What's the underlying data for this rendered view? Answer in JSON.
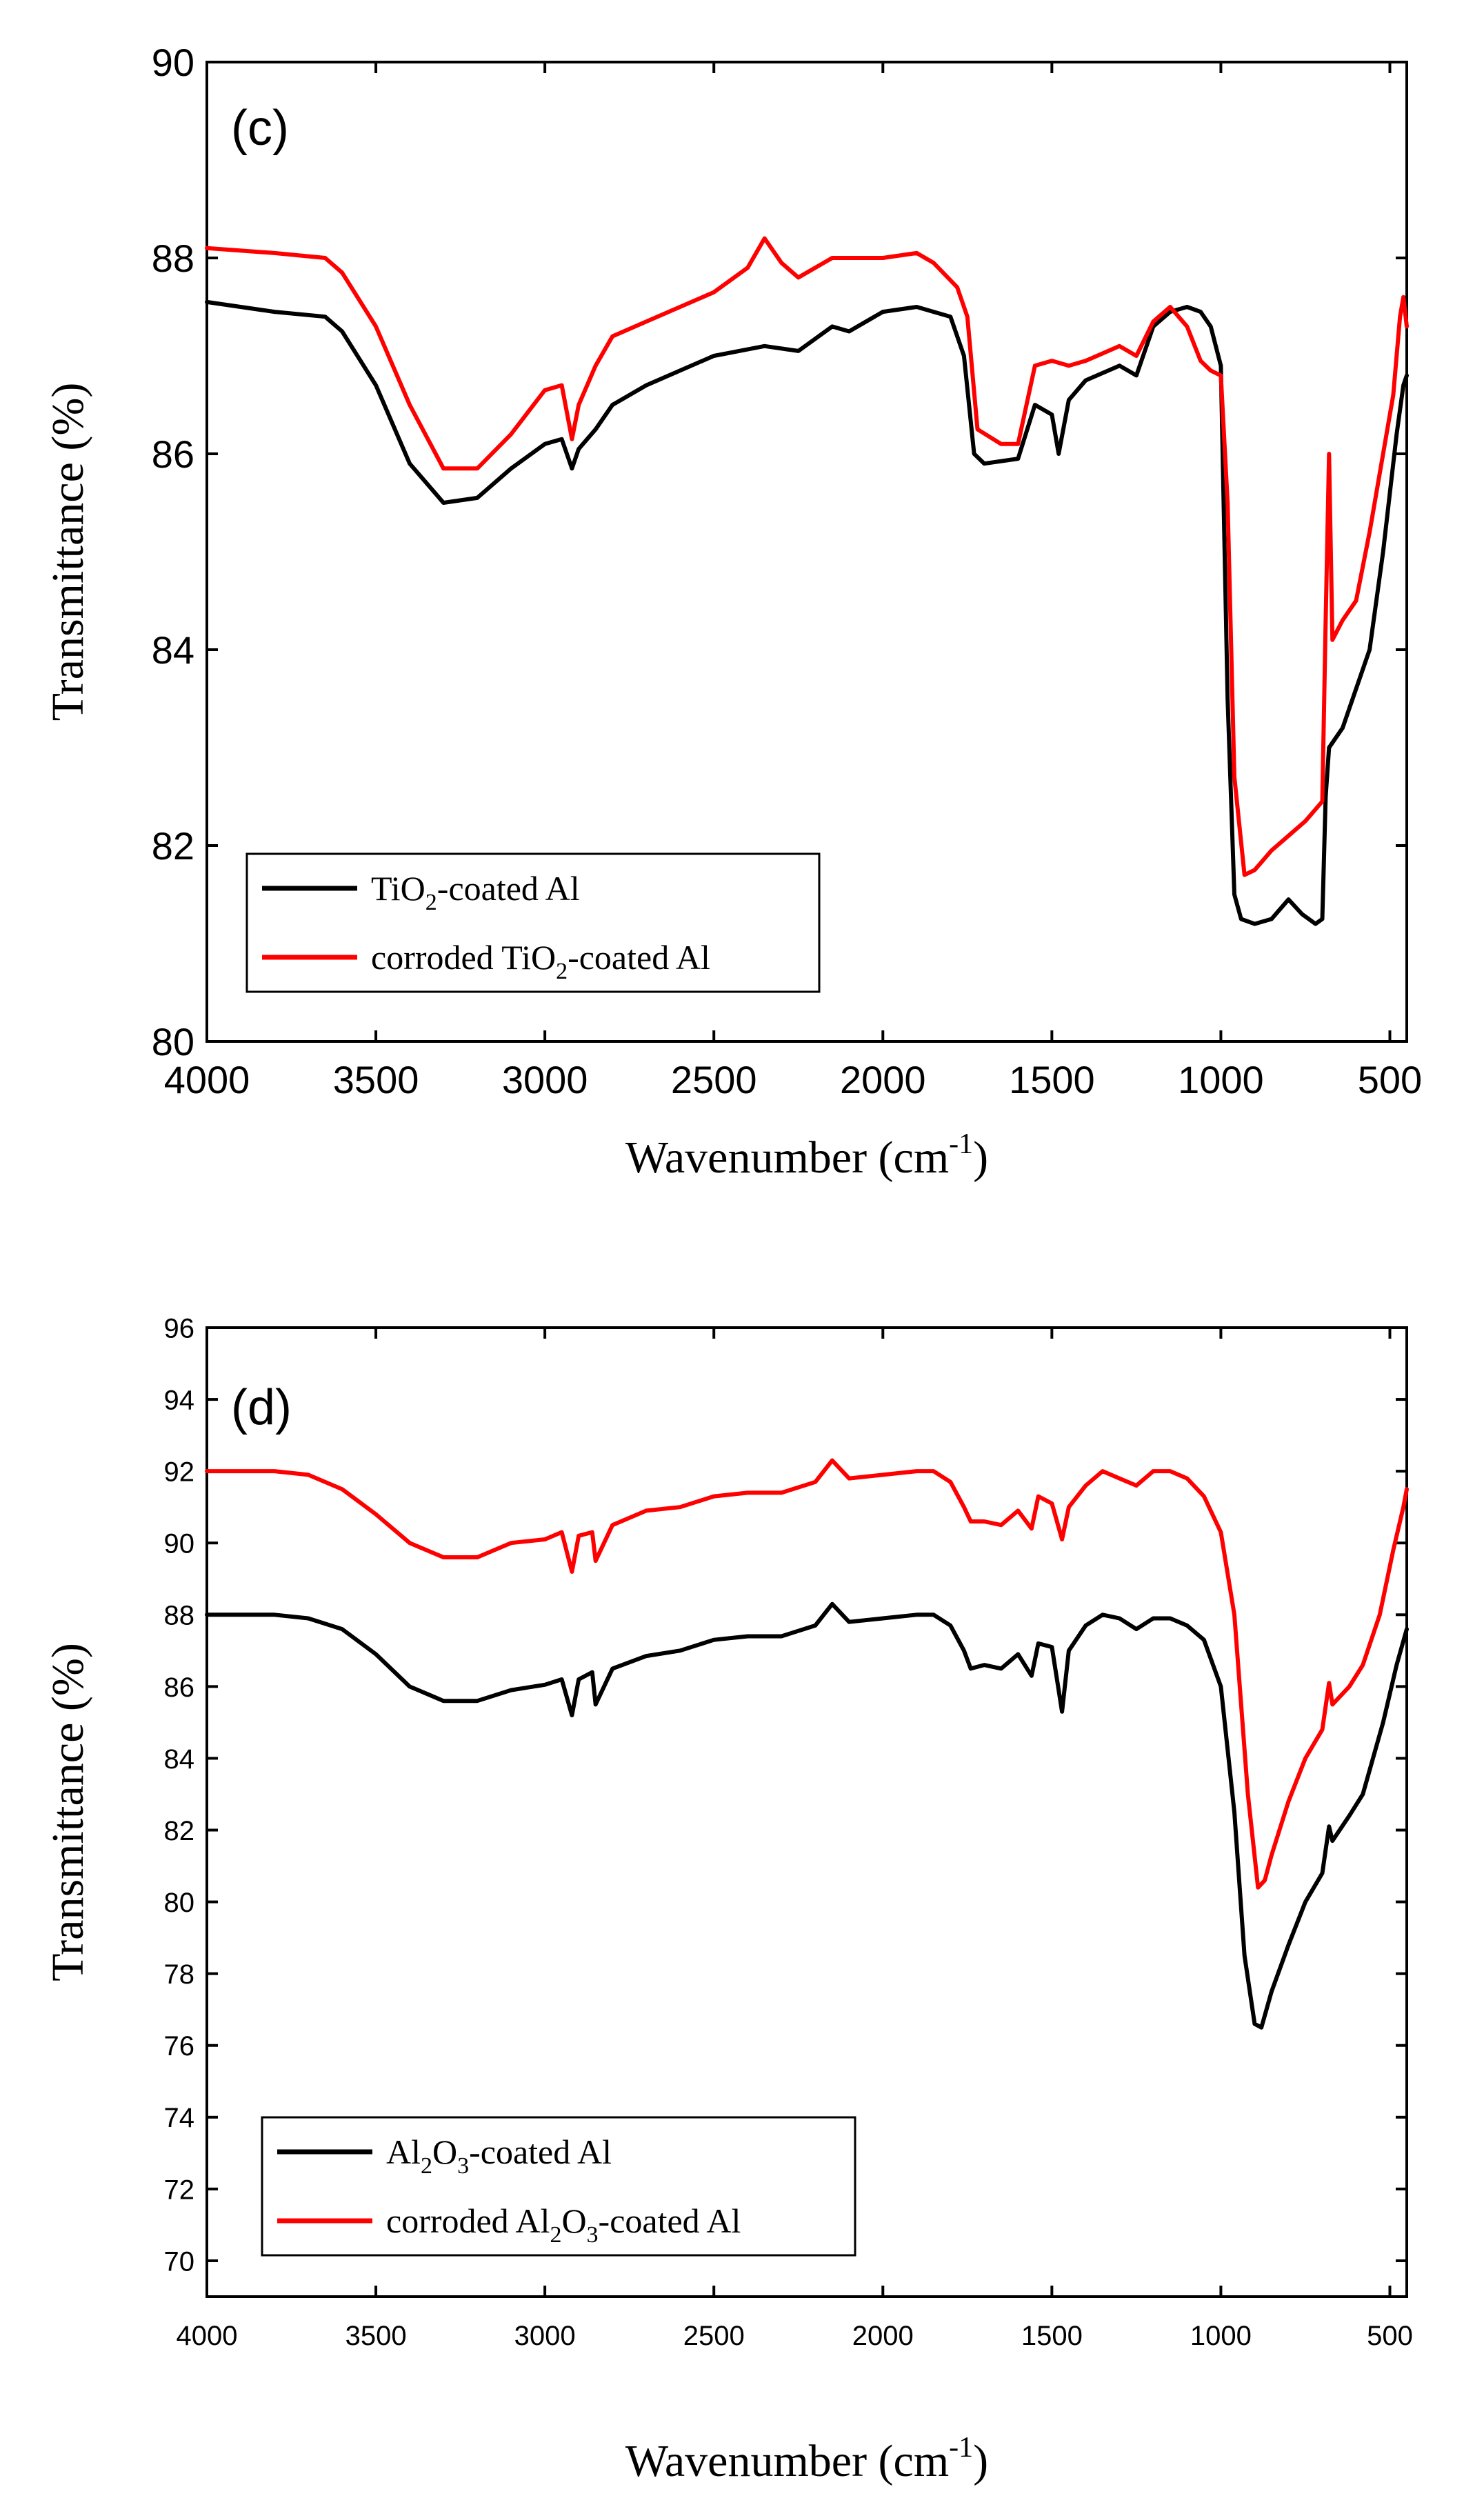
{
  "chart_data": [
    {
      "type": "line",
      "panel_label": "(c)",
      "xlabel": "Wavenumber (cm",
      "xlabel_sup": "-1",
      "xlabel_end": ")",
      "ylabel": "Transmittance (%)",
      "xlim": [
        4000,
        450
      ],
      "ylim": [
        80,
        90
      ],
      "xticks": [
        4000,
        3500,
        3000,
        2500,
        2000,
        1500,
        1000,
        500
      ],
      "yticks": [
        80,
        82,
        84,
        86,
        88,
        90
      ],
      "legend_position": "bottom-left",
      "series": [
        {
          "name": "TiO2-coated Al",
          "legend_parts": [
            "TiO",
            "2",
            "-coated Al"
          ],
          "color": "#000000",
          "points": [
            [
              4000,
              87.55
            ],
            [
              3800,
              87.45
            ],
            [
              3650,
              87.4
            ],
            [
              3600,
              87.25
            ],
            [
              3500,
              86.7
            ],
            [
              3400,
              85.9
            ],
            [
              3300,
              85.5
            ],
            [
              3200,
              85.55
            ],
            [
              3100,
              85.85
            ],
            [
              3000,
              86.1
            ],
            [
              2950,
              86.15
            ],
            [
              2920,
              85.85
            ],
            [
              2900,
              86.05
            ],
            [
              2850,
              86.25
            ],
            [
              2800,
              86.5
            ],
            [
              2700,
              86.7
            ],
            [
              2500,
              87.0
            ],
            [
              2350,
              87.1
            ],
            [
              2250,
              87.05
            ],
            [
              2150,
              87.3
            ],
            [
              2100,
              87.25
            ],
            [
              2000,
              87.45
            ],
            [
              1900,
              87.5
            ],
            [
              1800,
              87.4
            ],
            [
              1760,
              87.0
            ],
            [
              1730,
              86.0
            ],
            [
              1700,
              85.9
            ],
            [
              1600,
              85.95
            ],
            [
              1550,
              86.5
            ],
            [
              1500,
              86.4
            ],
            [
              1480,
              86.0
            ],
            [
              1450,
              86.55
            ],
            [
              1400,
              86.75
            ],
            [
              1300,
              86.9
            ],
            [
              1250,
              86.8
            ],
            [
              1200,
              87.3
            ],
            [
              1150,
              87.45
            ],
            [
              1100,
              87.5
            ],
            [
              1060,
              87.45
            ],
            [
              1030,
              87.3
            ],
            [
              1000,
              86.9
            ],
            [
              980,
              83.5
            ],
            [
              960,
              81.5
            ],
            [
              940,
              81.25
            ],
            [
              900,
              81.2
            ],
            [
              850,
              81.25
            ],
            [
              800,
              81.45
            ],
            [
              760,
              81.3
            ],
            [
              720,
              81.2
            ],
            [
              700,
              81.25
            ],
            [
              690,
              82.5
            ],
            [
              680,
              83.0
            ],
            [
              640,
              83.2
            ],
            [
              620,
              83.4
            ],
            [
              560,
              84.0
            ],
            [
              520,
              85.0
            ],
            [
              480,
              86.2
            ],
            [
              460,
              86.7
            ],
            [
              450,
              86.8
            ]
          ]
        },
        {
          "name": "corroded TiO2-coated Al",
          "legend_parts": [
            "corroded TiO",
            "2",
            "-coated Al"
          ],
          "color": "#ff0000",
          "points": [
            [
              4000,
              88.1
            ],
            [
              3800,
              88.05
            ],
            [
              3650,
              88.0
            ],
            [
              3600,
              87.85
            ],
            [
              3500,
              87.3
            ],
            [
              3400,
              86.5
            ],
            [
              3300,
              85.85
            ],
            [
              3200,
              85.85
            ],
            [
              3100,
              86.2
            ],
            [
              3000,
              86.65
            ],
            [
              2950,
              86.7
            ],
            [
              2920,
              86.15
            ],
            [
              2900,
              86.5
            ],
            [
              2850,
              86.9
            ],
            [
              2800,
              87.2
            ],
            [
              2700,
              87.35
            ],
            [
              2500,
              87.65
            ],
            [
              2400,
              87.9
            ],
            [
              2350,
              88.2
            ],
            [
              2300,
              87.95
            ],
            [
              2250,
              87.8
            ],
            [
              2150,
              88.0
            ],
            [
              2000,
              88.0
            ],
            [
              1900,
              88.05
            ],
            [
              1850,
              87.95
            ],
            [
              1780,
              87.7
            ],
            [
              1750,
              87.4
            ],
            [
              1720,
              86.25
            ],
            [
              1650,
              86.1
            ],
            [
              1600,
              86.1
            ],
            [
              1550,
              86.9
            ],
            [
              1500,
              86.95
            ],
            [
              1450,
              86.9
            ],
            [
              1400,
              86.95
            ],
            [
              1300,
              87.1
            ],
            [
              1250,
              87.0
            ],
            [
              1200,
              87.35
            ],
            [
              1150,
              87.5
            ],
            [
              1100,
              87.3
            ],
            [
              1060,
              86.95
            ],
            [
              1030,
              86.85
            ],
            [
              1000,
              86.8
            ],
            [
              980,
              85.5
            ],
            [
              960,
              82.7
            ],
            [
              930,
              81.7
            ],
            [
              900,
              81.75
            ],
            [
              850,
              81.95
            ],
            [
              800,
              82.1
            ],
            [
              750,
              82.25
            ],
            [
              700,
              82.45
            ],
            [
              690,
              84.3
            ],
            [
              680,
              86.0
            ],
            [
              670,
              84.1
            ],
            [
              640,
              84.3
            ],
            [
              600,
              84.5
            ],
            [
              560,
              85.2
            ],
            [
              520,
              86.0
            ],
            [
              490,
              86.6
            ],
            [
              470,
              87.4
            ],
            [
              460,
              87.6
            ],
            [
              450,
              87.3
            ]
          ]
        }
      ]
    },
    {
      "type": "line",
      "panel_label": "(d)",
      "xlabel": "Wavenumber (cm",
      "xlabel_sup": "-1",
      "xlabel_end": ")",
      "ylabel": "Transmittance (%)",
      "xlim": [
        4000,
        450
      ],
      "ylim": [
        69,
        96
      ],
      "xticks": [
        4000,
        3500,
        3000,
        2500,
        2000,
        1500,
        1000,
        500
      ],
      "yticks": [
        70,
        72,
        74,
        76,
        78,
        80,
        82,
        84,
        86,
        88,
        90,
        92,
        94,
        96
      ],
      "legend_position": "bottom-left",
      "series": [
        {
          "name": "Al2O3-coated Al",
          "legend_parts": [
            "Al",
            "2",
            "O",
            "3",
            "-coated Al"
          ],
          "color": "#000000",
          "points": [
            [
              4000,
              88.0
            ],
            [
              3800,
              88.0
            ],
            [
              3700,
              87.9
            ],
            [
              3600,
              87.6
            ],
            [
              3500,
              86.9
            ],
            [
              3400,
              86.0
            ],
            [
              3300,
              85.6
            ],
            [
              3200,
              85.6
            ],
            [
              3100,
              85.9
            ],
            [
              3000,
              86.05
            ],
            [
              2950,
              86.2
            ],
            [
              2920,
              85.2
            ],
            [
              2900,
              86.2
            ],
            [
              2860,
              86.4
            ],
            [
              2850,
              85.5
            ],
            [
              2800,
              86.5
            ],
            [
              2700,
              86.85
            ],
            [
              2600,
              87.0
            ],
            [
              2500,
              87.3
            ],
            [
              2400,
              87.4
            ],
            [
              2300,
              87.4
            ],
            [
              2200,
              87.7
            ],
            [
              2150,
              88.3
            ],
            [
              2100,
              87.8
            ],
            [
              2000,
              87.9
            ],
            [
              1900,
              88.0
            ],
            [
              1850,
              88.0
            ],
            [
              1800,
              87.7
            ],
            [
              1760,
              87.0
            ],
            [
              1740,
              86.5
            ],
            [
              1700,
              86.6
            ],
            [
              1650,
              86.5
            ],
            [
              1600,
              86.9
            ],
            [
              1560,
              86.3
            ],
            [
              1540,
              87.2
            ],
            [
              1500,
              87.1
            ],
            [
              1470,
              85.3
            ],
            [
              1450,
              87.0
            ],
            [
              1400,
              87.7
            ],
            [
              1350,
              88.0
            ],
            [
              1300,
              87.9
            ],
            [
              1250,
              87.6
            ],
            [
              1200,
              87.9
            ],
            [
              1150,
              87.9
            ],
            [
              1100,
              87.7
            ],
            [
              1050,
              87.3
            ],
            [
              1000,
              86.0
            ],
            [
              960,
              82.5
            ],
            [
              930,
              78.5
            ],
            [
              900,
              76.6
            ],
            [
              880,
              76.5
            ],
            [
              850,
              77.5
            ],
            [
              800,
              78.8
            ],
            [
              750,
              80.0
            ],
            [
              700,
              80.8
            ],
            [
              680,
              82.1
            ],
            [
              670,
              81.7
            ],
            [
              620,
              82.4
            ],
            [
              580,
              83.0
            ],
            [
              520,
              85.0
            ],
            [
              480,
              86.6
            ],
            [
              450,
              87.6
            ]
          ]
        },
        {
          "name": "corroded Al2O3-coated Al",
          "legend_parts": [
            "corroded Al",
            "2",
            "O",
            "3",
            "-coated Al"
          ],
          "color": "#ff0000",
          "points": [
            [
              4000,
              92.0
            ],
            [
              3800,
              92.0
            ],
            [
              3700,
              91.9
            ],
            [
              3600,
              91.5
            ],
            [
              3500,
              90.8
            ],
            [
              3400,
              90.0
            ],
            [
              3300,
              89.6
            ],
            [
              3200,
              89.6
            ],
            [
              3100,
              90.0
            ],
            [
              3000,
              90.1
            ],
            [
              2950,
              90.3
            ],
            [
              2920,
              89.2
            ],
            [
              2900,
              90.2
            ],
            [
              2860,
              90.3
            ],
            [
              2850,
              89.5
            ],
            [
              2800,
              90.5
            ],
            [
              2700,
              90.9
            ],
            [
              2600,
              91.0
            ],
            [
              2500,
              91.3
            ],
            [
              2400,
              91.4
            ],
            [
              2300,
              91.4
            ],
            [
              2200,
              91.7
            ],
            [
              2150,
              92.3
            ],
            [
              2100,
              91.8
            ],
            [
              2000,
              91.9
            ],
            [
              1900,
              92.0
            ],
            [
              1850,
              92.0
            ],
            [
              1800,
              91.7
            ],
            [
              1760,
              91.0
            ],
            [
              1740,
              90.6
            ],
            [
              1700,
              90.6
            ],
            [
              1650,
              90.5
            ],
            [
              1600,
              90.9
            ],
            [
              1560,
              90.4
            ],
            [
              1540,
              91.3
            ],
            [
              1500,
              91.1
            ],
            [
              1470,
              90.1
            ],
            [
              1450,
              91.0
            ],
            [
              1400,
              91.6
            ],
            [
              1350,
              92.0
            ],
            [
              1300,
              91.8
            ],
            [
              1250,
              91.6
            ],
            [
              1200,
              92.0
            ],
            [
              1150,
              92.0
            ],
            [
              1100,
              91.8
            ],
            [
              1050,
              91.3
            ],
            [
              1000,
              90.3
            ],
            [
              960,
              88.0
            ],
            [
              920,
              83.0
            ],
            [
              890,
              80.4
            ],
            [
              870,
              80.6
            ],
            [
              850,
              81.3
            ],
            [
              800,
              82.8
            ],
            [
              750,
              84.0
            ],
            [
              700,
              84.8
            ],
            [
              680,
              86.1
            ],
            [
              670,
              85.5
            ],
            [
              620,
              86.0
            ],
            [
              580,
              86.6
            ],
            [
              530,
              88.0
            ],
            [
              490,
              89.8
            ],
            [
              460,
              91.0
            ],
            [
              450,
              91.5
            ]
          ]
        }
      ]
    }
  ]
}
